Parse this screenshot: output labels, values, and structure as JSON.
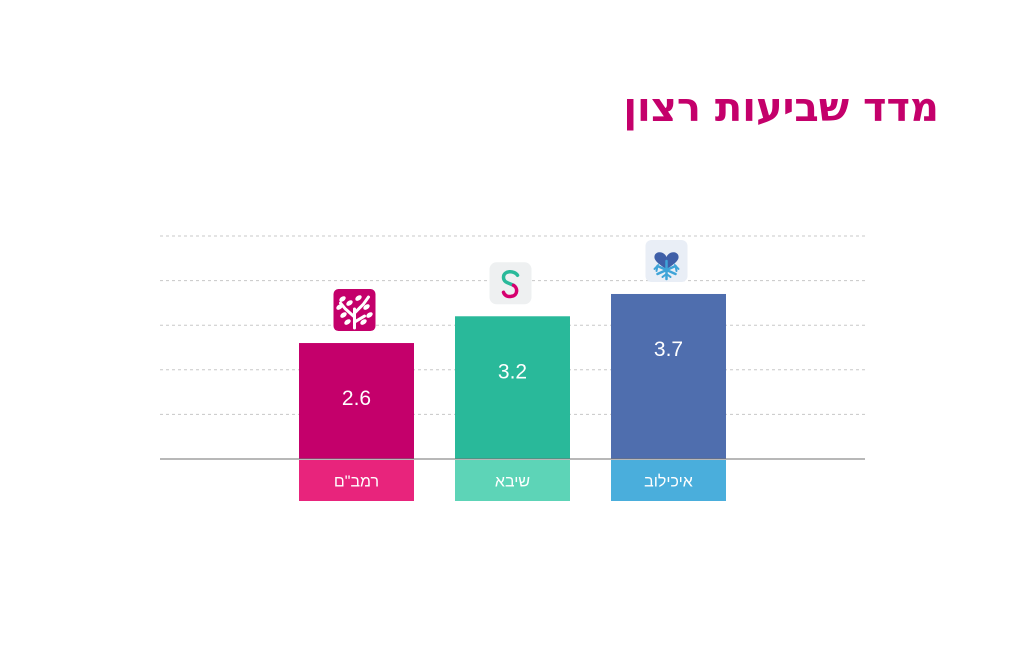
{
  "title": "מדד שביעות רצון",
  "colors": {
    "title": "#c4006b",
    "grid": "#c8c8c8",
    "axis": "#707070"
  },
  "chart_data": {
    "type": "bar",
    "categories": [
      "רמב\"ם",
      "שיבא",
      "איכילוב"
    ],
    "values": [
      2.6,
      3.2,
      3.7
    ],
    "value_labels": [
      "2.6",
      "3.2",
      "3.7"
    ],
    "title": "מדד שביעות רצון",
    "ylim": [
      0,
      5
    ],
    "grid": true,
    "bar_colors": [
      "#c4006b",
      "#29b99a",
      "#4f6eae"
    ],
    "label_colors": [
      "#e8247c",
      "#5dd4b7",
      "#4aaedc"
    ],
    "icons": [
      "rambam-tree-logo-icon",
      "sheba-s-logo-icon",
      "ichilov-heart-logo-icon"
    ]
  }
}
